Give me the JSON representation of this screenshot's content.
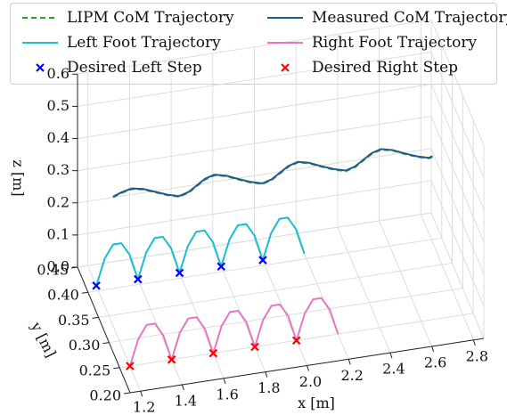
{
  "chart_data": {
    "type": "line",
    "projection": "3d",
    "axes": {
      "x": {
        "label": "x [m]",
        "ticks": [
          "1.2",
          "1.4",
          "1.6",
          "1.8",
          "2.0",
          "2.2",
          "2.4",
          "2.6",
          "2.8"
        ],
        "range": [
          1.15,
          2.85
        ]
      },
      "y": {
        "label": "y [m]",
        "ticks": [
          "0.20",
          "0.25",
          "0.30",
          "0.35",
          "0.40",
          "0.45"
        ],
        "range": [
          0.2,
          0.45
        ]
      },
      "z": {
        "label": "z [m]",
        "ticks": [
          "0.0",
          "0.1",
          "0.2",
          "0.3",
          "0.4",
          "0.5",
          "0.6"
        ],
        "range": [
          0.0,
          0.6
        ]
      }
    },
    "grid": true,
    "legend_position": "top",
    "series": [
      {
        "name": "LIPM CoM Trajectory",
        "style": "dashed-line",
        "color": "#2ca02c",
        "x": [
          1.2,
          1.25,
          1.3,
          1.35,
          1.4,
          1.45,
          1.5,
          1.55,
          1.6,
          1.65,
          1.7,
          1.75,
          1.8,
          1.85,
          1.9,
          1.95,
          2.0,
          2.05,
          2.1,
          2.15,
          2.2,
          2.25,
          2.3,
          2.35,
          2.4,
          2.45,
          2.5,
          2.55,
          2.6,
          2.65,
          2.7,
          2.72
        ],
        "y": [
          0.33,
          0.336,
          0.34,
          0.336,
          0.327,
          0.318,
          0.312,
          0.317,
          0.327,
          0.337,
          0.342,
          0.337,
          0.327,
          0.318,
          0.312,
          0.317,
          0.327,
          0.337,
          0.342,
          0.337,
          0.327,
          0.318,
          0.312,
          0.317,
          0.327,
          0.337,
          0.342,
          0.337,
          0.327,
          0.318,
          0.312,
          0.314
        ],
        "z": [
          0.4,
          0.4,
          0.4,
          0.4,
          0.4,
          0.4,
          0.4,
          0.4,
          0.4,
          0.4,
          0.4,
          0.4,
          0.4,
          0.4,
          0.4,
          0.4,
          0.4,
          0.4,
          0.4,
          0.4,
          0.4,
          0.4,
          0.4,
          0.4,
          0.4,
          0.4,
          0.4,
          0.4,
          0.4,
          0.4,
          0.4,
          0.4
        ]
      },
      {
        "name": "Measured CoM Trajectory",
        "style": "line",
        "color": "#1f5a8c",
        "x": [
          1.2,
          1.25,
          1.3,
          1.35,
          1.4,
          1.45,
          1.5,
          1.55,
          1.6,
          1.65,
          1.7,
          1.75,
          1.8,
          1.85,
          1.9,
          1.95,
          2.0,
          2.05,
          2.1,
          2.15,
          2.2,
          2.25,
          2.3,
          2.35,
          2.4,
          2.45,
          2.5,
          2.55,
          2.6,
          2.65,
          2.7,
          2.72
        ],
        "y": [
          0.331,
          0.337,
          0.341,
          0.337,
          0.328,
          0.319,
          0.313,
          0.318,
          0.328,
          0.338,
          0.343,
          0.338,
          0.328,
          0.319,
          0.313,
          0.318,
          0.328,
          0.338,
          0.343,
          0.338,
          0.328,
          0.319,
          0.313,
          0.318,
          0.328,
          0.338,
          0.343,
          0.338,
          0.328,
          0.319,
          0.313,
          0.315
        ],
        "z": [
          0.4,
          0.4,
          0.4,
          0.4,
          0.4,
          0.4,
          0.4,
          0.4,
          0.4,
          0.4,
          0.4,
          0.4,
          0.4,
          0.4,
          0.4,
          0.4,
          0.4,
          0.4,
          0.4,
          0.4,
          0.4,
          0.4,
          0.4,
          0.4,
          0.4,
          0.4,
          0.4,
          0.4,
          0.4,
          0.4,
          0.4,
          0.4
        ]
      },
      {
        "name": "Left Foot Trajectory",
        "style": "line",
        "color": "#17becf",
        "x": [
          1.2,
          1.24,
          1.28,
          1.32,
          1.36,
          1.4,
          1.4,
          1.44,
          1.48,
          1.52,
          1.56,
          1.6,
          1.6,
          1.64,
          1.68,
          1.72,
          1.76,
          1.8,
          1.8,
          1.84,
          1.88,
          1.92,
          1.96,
          2.0,
          2.0,
          2.04,
          2.08,
          2.12,
          2.16,
          2.2
        ],
        "y": [
          0.41,
          0.41,
          0.41,
          0.41,
          0.41,
          0.41,
          0.41,
          0.41,
          0.41,
          0.41,
          0.41,
          0.41,
          0.41,
          0.41,
          0.41,
          0.41,
          0.41,
          0.41,
          0.41,
          0.41,
          0.41,
          0.41,
          0.41,
          0.41,
          0.41,
          0.41,
          0.41,
          0.41,
          0.41,
          0.41
        ],
        "z": [
          0.0,
          0.08,
          0.12,
          0.12,
          0.08,
          0.0,
          0.0,
          0.08,
          0.12,
          0.12,
          0.08,
          0.0,
          0.0,
          0.08,
          0.12,
          0.12,
          0.08,
          0.0,
          0.0,
          0.08,
          0.12,
          0.12,
          0.08,
          0.0,
          0.0,
          0.08,
          0.12,
          0.12,
          0.08,
          0.0
        ]
      },
      {
        "name": "Right Foot Trajectory",
        "style": "line",
        "color": "#e377c2",
        "x": [
          1.2,
          1.24,
          1.28,
          1.32,
          1.36,
          1.4,
          1.4,
          1.44,
          1.48,
          1.52,
          1.56,
          1.6,
          1.6,
          1.64,
          1.68,
          1.72,
          1.76,
          1.8,
          1.8,
          1.84,
          1.88,
          1.92,
          1.96,
          2.0,
          2.0,
          2.04,
          2.08,
          2.12,
          2.16,
          2.2
        ],
        "y": [
          0.25,
          0.25,
          0.25,
          0.25,
          0.25,
          0.25,
          0.25,
          0.25,
          0.25,
          0.25,
          0.25,
          0.25,
          0.25,
          0.25,
          0.25,
          0.25,
          0.25,
          0.25,
          0.25,
          0.25,
          0.25,
          0.25,
          0.25,
          0.25,
          0.25,
          0.25,
          0.25,
          0.25,
          0.25,
          0.25
        ],
        "z": [
          0.0,
          0.08,
          0.12,
          0.12,
          0.08,
          0.0,
          0.0,
          0.08,
          0.12,
          0.12,
          0.08,
          0.0,
          0.0,
          0.08,
          0.12,
          0.12,
          0.08,
          0.0,
          0.0,
          0.08,
          0.12,
          0.12,
          0.08,
          0.0,
          0.0,
          0.08,
          0.12,
          0.12,
          0.08,
          0.0
        ]
      },
      {
        "name": "Desired Left Step",
        "style": "x-marker",
        "color": "#0000ff",
        "x": [
          1.2,
          1.4,
          1.6,
          1.8,
          2.0
        ],
        "y": [
          0.41,
          0.41,
          0.41,
          0.41,
          0.41
        ],
        "z": [
          0,
          0,
          0,
          0,
          0
        ]
      },
      {
        "name": "Desired Right Step",
        "style": "x-marker",
        "color": "#ff0000",
        "x": [
          1.2,
          1.4,
          1.6,
          1.8,
          2.0
        ],
        "y": [
          0.25,
          0.25,
          0.25,
          0.25,
          0.25
        ],
        "z": [
          0,
          0,
          0,
          0,
          0
        ]
      }
    ]
  }
}
